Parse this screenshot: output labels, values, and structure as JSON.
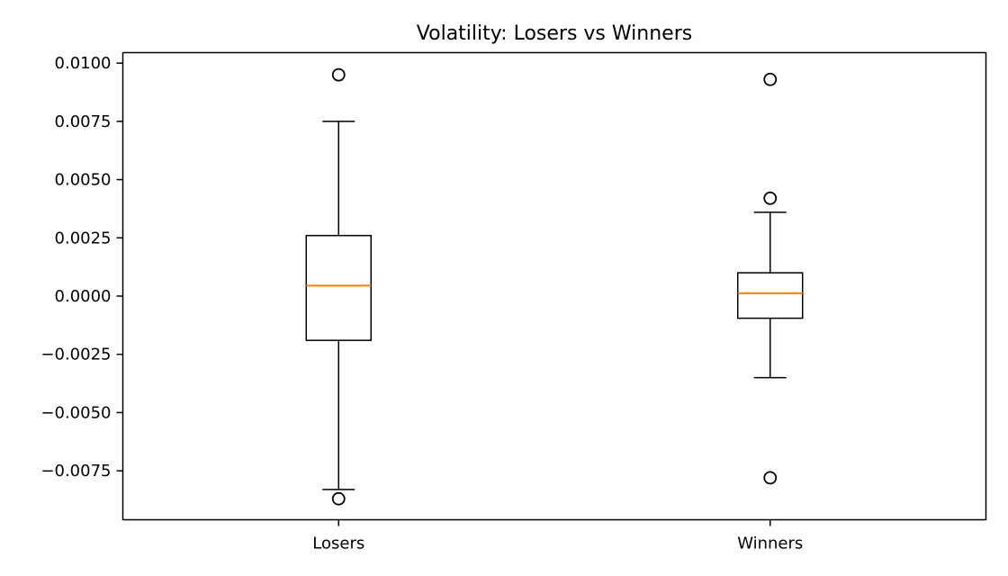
{
  "chart_data": {
    "type": "box",
    "title": "Volatility: Losers vs Winners",
    "xlabel": "",
    "ylabel": "",
    "ylim": [
      -0.0096,
      0.01045
    ],
    "yticks": [
      0.01,
      0.0075,
      0.005,
      0.0025,
      0.0,
      -0.0025,
      -0.005,
      -0.0075
    ],
    "ytick_labels": [
      "0.0100",
      "0.0075",
      "0.0050",
      "0.0025",
      "0.0000",
      "−0.0025",
      "−0.0050",
      "−0.0075"
    ],
    "categories": [
      "Losers",
      "Winners"
    ],
    "boxes": [
      {
        "label": "Losers",
        "whisker_low": -0.0083,
        "q1": -0.0019,
        "median": 0.00045,
        "q3": 0.0026,
        "whisker_high": 0.0075,
        "outliers": [
          0.0095,
          -0.0087
        ]
      },
      {
        "label": "Winners",
        "whisker_low": -0.0035,
        "q1": -0.00095,
        "median": 0.00012,
        "q3": 0.001,
        "whisker_high": 0.0036,
        "outliers": [
          0.0093,
          0.0042,
          -0.0078
        ]
      }
    ],
    "colors": {
      "box": "#000000",
      "median": "#ff7f0e",
      "background": "#ffffff"
    },
    "grid": false,
    "legend": "none"
  }
}
